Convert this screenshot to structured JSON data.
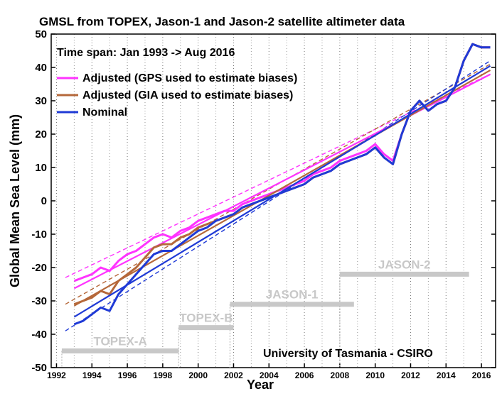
{
  "chart_data": {
    "type": "line",
    "title": "GMSL from TOPEX, Jason-1 and Jason-2 satellite altimeter data",
    "xlabel": "Year",
    "ylabel": "Global Mean Sea Level (mm)",
    "xlim": [
      1991.7,
      2016.8
    ],
    "ylim": [
      -50,
      50
    ],
    "x_ticks": [
      1992,
      1994,
      1996,
      1998,
      2000,
      2002,
      2004,
      2006,
      2008,
      2010,
      2012,
      2014,
      2016
    ],
    "y_ticks": [
      -50,
      -40,
      -30,
      -20,
      -10,
      0,
      10,
      20,
      30,
      40,
      50
    ],
    "grid": "vertical dotted",
    "time_span_label": "Time span: Jan 1993 -> Aug 2016",
    "credit": "University of Tasmania - CSIRO",
    "legend_position": "top-left",
    "colors": {
      "adjusted_gps": "#ff33ff",
      "adjusted_gia": "#b5683a",
      "nominal": "#1f3ad6",
      "mission_bar": "#c8c8c8"
    },
    "series": [
      {
        "name": "Adjusted (GPS used to estimate biases)",
        "color": "#ff33ff",
        "x": [
          1993.0,
          1993.5,
          1994.0,
          1994.5,
          1995.0,
          1995.5,
          1996.0,
          1996.5,
          1997.0,
          1997.5,
          1998.0,
          1998.5,
          1999.0,
          1999.5,
          2000.0,
          2000.5,
          2001.0,
          2001.5,
          2002.0,
          2002.5,
          2003.0,
          2003.5,
          2004.0,
          2004.5,
          2005.0,
          2005.5,
          2006.0,
          2006.5,
          2007.0,
          2007.5,
          2008.0,
          2008.5,
          2009.0,
          2009.5,
          2010.0,
          2010.5,
          2011.0,
          2011.5,
          2012.0,
          2012.5,
          2013.0,
          2013.5,
          2014.0,
          2014.5,
          2015.0,
          2015.5,
          2016.0,
          2016.5
        ],
        "y": [
          -24,
          -23,
          -22,
          -20,
          -21,
          -18,
          -16,
          -15,
          -13,
          -11,
          -10,
          -11,
          -9,
          -8,
          -6,
          -5,
          -4,
          -3,
          -3,
          -1,
          0,
          1,
          2,
          3,
          4,
          5,
          6,
          8,
          9,
          10,
          12,
          13,
          14,
          15,
          17,
          14,
          12,
          20,
          27,
          30,
          27,
          29,
          30,
          34,
          42,
          47,
          46,
          46
        ]
      },
      {
        "name": "Adjusted (GIA used to estimate biases)",
        "color": "#b5683a",
        "x": [
          1993.0,
          1993.5,
          1994.0,
          1994.5,
          1995.0,
          1995.5,
          1996.0,
          1996.5,
          1997.0,
          1997.5,
          1998.0,
          1998.5,
          1999.0,
          1999.5,
          2000.0,
          2000.5,
          2001.0,
          2001.5,
          2002.0,
          2002.5,
          2003.0,
          2003.5,
          2004.0,
          2004.5,
          2005.0,
          2005.5,
          2006.0,
          2006.5,
          2007.0,
          2007.5,
          2008.0,
          2008.5,
          2009.0,
          2009.5,
          2010.0,
          2010.5,
          2011.0,
          2011.5,
          2012.0,
          2012.5,
          2013.0,
          2013.5,
          2014.0,
          2014.5,
          2015.0,
          2015.5,
          2016.0,
          2016.5
        ],
        "y": [
          -31,
          -30,
          -29,
          -27,
          -28,
          -24,
          -22,
          -20,
          -17,
          -14,
          -13,
          -13,
          -11,
          -10,
          -8,
          -7,
          -6,
          -5,
          -4,
          -2,
          -1,
          0,
          1,
          2,
          3,
          4,
          5,
          7,
          8,
          9,
          11,
          12,
          13,
          14,
          16,
          13,
          11,
          20,
          27,
          30,
          27,
          29,
          30,
          34,
          42,
          47,
          46,
          46
        ]
      },
      {
        "name": "Nominal",
        "color": "#1f3ad6",
        "x": [
          1993.0,
          1993.5,
          1994.0,
          1994.5,
          1995.0,
          1995.5,
          1996.0,
          1996.5,
          1997.0,
          1997.5,
          1998.0,
          1998.5,
          1999.0,
          1999.5,
          2000.0,
          2000.5,
          2001.0,
          2001.5,
          2002.0,
          2002.5,
          2003.0,
          2003.5,
          2004.0,
          2004.5,
          2005.0,
          2005.5,
          2006.0,
          2006.5,
          2007.0,
          2007.5,
          2008.0,
          2008.5,
          2009.0,
          2009.5,
          2010.0,
          2010.5,
          2011.0,
          2011.5,
          2012.0,
          2012.5,
          2013.0,
          2013.5,
          2014.0,
          2014.5,
          2015.0,
          2015.5,
          2016.0,
          2016.5
        ],
        "y": [
          -37,
          -36,
          -34,
          -32,
          -33,
          -28,
          -25,
          -22,
          -19,
          -16,
          -15,
          -15,
          -13,
          -11,
          -9,
          -8,
          -6,
          -5,
          -4,
          -2,
          -1,
          0,
          1,
          2,
          3,
          4,
          5,
          7,
          8,
          9,
          11,
          12,
          13,
          14,
          16,
          13,
          11,
          20,
          27,
          30,
          27,
          29,
          30,
          34,
          42,
          47,
          46,
          46
        ]
      }
    ],
    "trend_lines": [
      {
        "series": "Adjusted (GPS used to estimate biases)",
        "x": [
          1992.5,
          2016.5
        ],
        "y": [
          -23,
          38
        ]
      },
      {
        "series": "Adjusted (GIA used to estimate biases)",
        "x": [
          1992.5,
          2016.5
        ],
        "y": [
          -31,
          41
        ]
      },
      {
        "series": "Nominal",
        "x": [
          1992.5,
          2016.5
        ],
        "y": [
          -39,
          42
        ]
      }
    ],
    "missions": [
      {
        "name": "TOPEX-A",
        "start": 1992.3,
        "end": 1998.9,
        "y": -45
      },
      {
        "name": "TOPEX-B",
        "start": 1998.9,
        "end": 2002.0,
        "y": -38
      },
      {
        "name": "JASON-1",
        "start": 2001.8,
        "end": 2008.8,
        "y": -31
      },
      {
        "name": "JASON-2",
        "start": 2008.0,
        "end": 2015.3,
        "y": -22
      }
    ]
  }
}
